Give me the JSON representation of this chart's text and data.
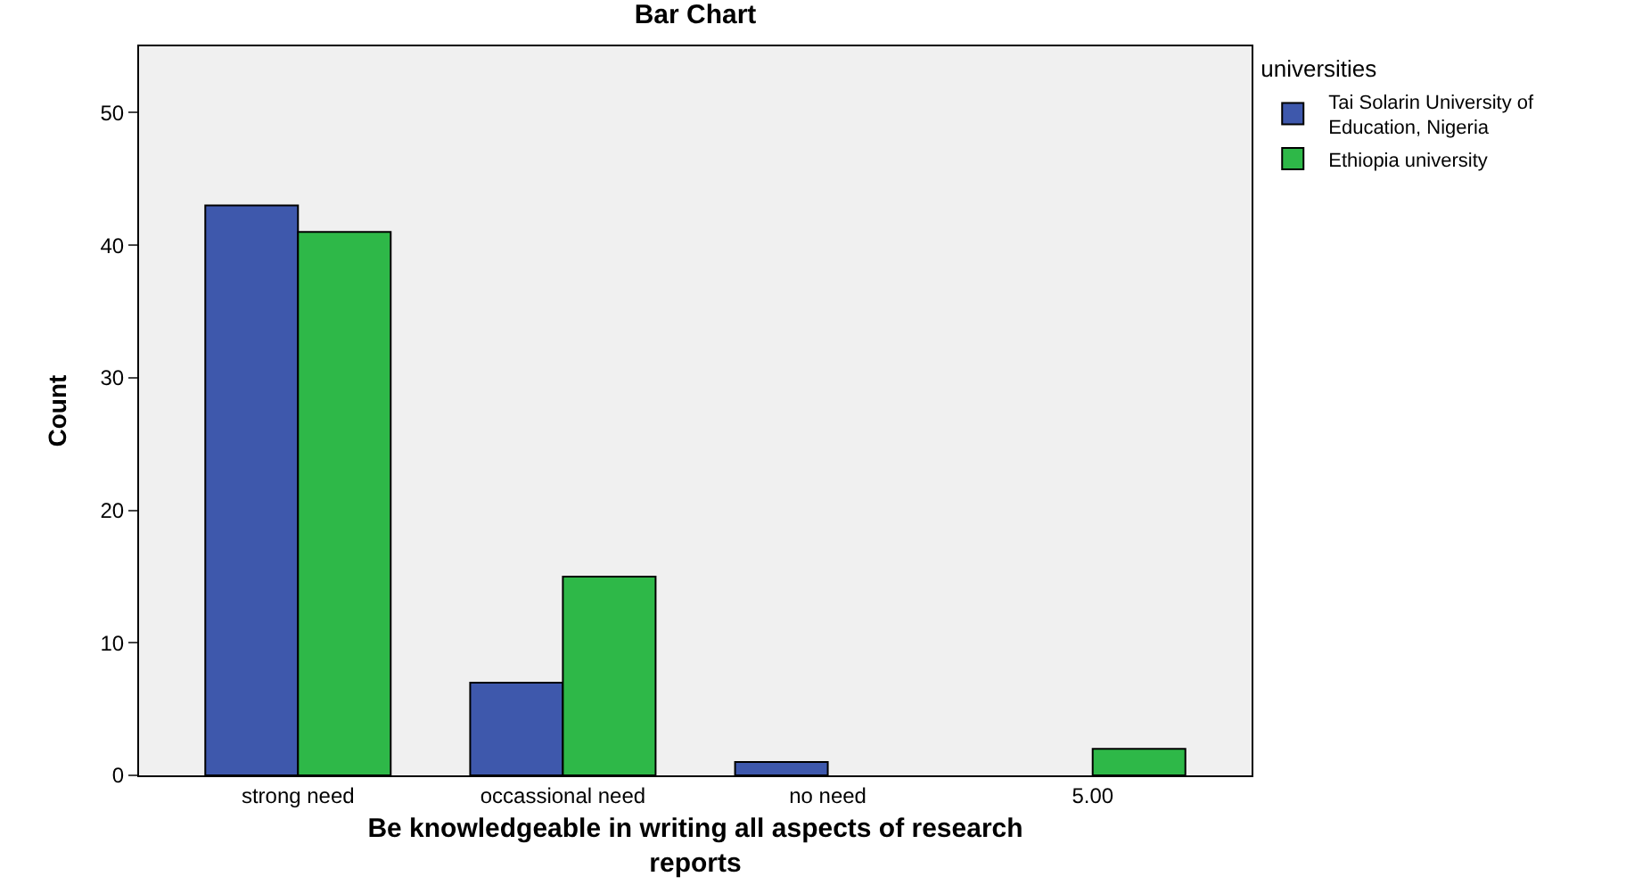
{
  "chart_data": {
    "type": "bar",
    "title": "Bar Chart",
    "xlabel": "Be knowledgeable in writing all aspects of research reports",
    "ylabel": "Count",
    "legend_title": "universities",
    "categories": [
      "strong need",
      "occassional need",
      "no need",
      "5.00"
    ],
    "series": [
      {
        "name": "Tai Solarin University of Education, Nigeria",
        "color": "#3e58ac",
        "values": [
          43,
          7,
          1,
          null
        ]
      },
      {
        "name": "Ethiopia university",
        "color": "#2eb848",
        "values": [
          41,
          15,
          null,
          2
        ]
      }
    ],
    "ylim": [
      0,
      55
    ],
    "yticks": [
      0,
      10,
      20,
      30,
      40,
      50
    ],
    "grid": false,
    "legend": "top right"
  }
}
